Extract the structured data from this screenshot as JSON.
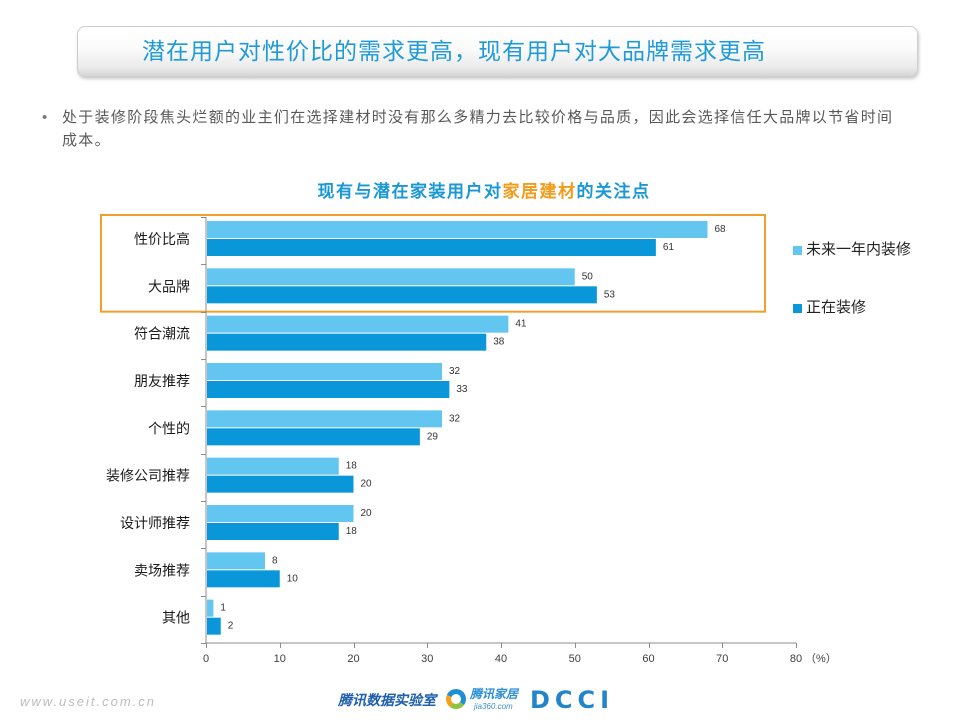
{
  "slide": {
    "title": "潜在用户对性价比的需求更高，现有用户对大品牌需求更高",
    "bullet_symbol": "•",
    "bullet_text": "处于装修阶段焦头烂额的业主们在选择建材时没有那么多精力去比较价格与品质，因此会选择信任大品牌以节省时间成本。"
  },
  "colors": {
    "slide_title": "#1e9bd7",
    "chart_title": "#1a98d5",
    "chart_title_highlight": "#f39b1b",
    "highlight_box": "#f0a02a",
    "body_text": "#595959"
  },
  "chart_data": {
    "type": "bar",
    "orientation": "horizontal",
    "title": "现有与潜在家装用户对家居建材的关注点",
    "title_highlight": "家居建材",
    "xlabel": "",
    "ylabel": "",
    "x_unit": "（%）",
    "xlim": [
      0,
      80
    ],
    "xticks": [
      0,
      10,
      20,
      30,
      40,
      50,
      60,
      70,
      80
    ],
    "categories": [
      "性价比高",
      "大品牌",
      "符合潮流",
      "朋友推荐",
      "个性的",
      "装修公司推荐",
      "设计师推荐",
      "卖场推荐",
      "其他"
    ],
    "series": [
      {
        "name": "未来一年内装修",
        "color": "#63c6f1",
        "values": [
          68,
          50,
          41,
          32,
          32,
          18,
          20,
          8,
          1
        ]
      },
      {
        "name": "正在装修",
        "color": "#0a97d9",
        "values": [
          61,
          53,
          38,
          33,
          29,
          20,
          18,
          10,
          2
        ]
      }
    ],
    "data_labels": true,
    "grid": false,
    "legend_position": "right",
    "highlighted_categories": {
      "first_index": 0,
      "last_index": 1,
      "color": "#f0a02a"
    }
  },
  "footer": {
    "watermark": "www.useit.com.cn",
    "logo_lab": "腾讯数据实验室",
    "logo_jia": "腾讯家居",
    "logo_jia_url": "jia360.com",
    "logo_dcci": "DCCI"
  }
}
